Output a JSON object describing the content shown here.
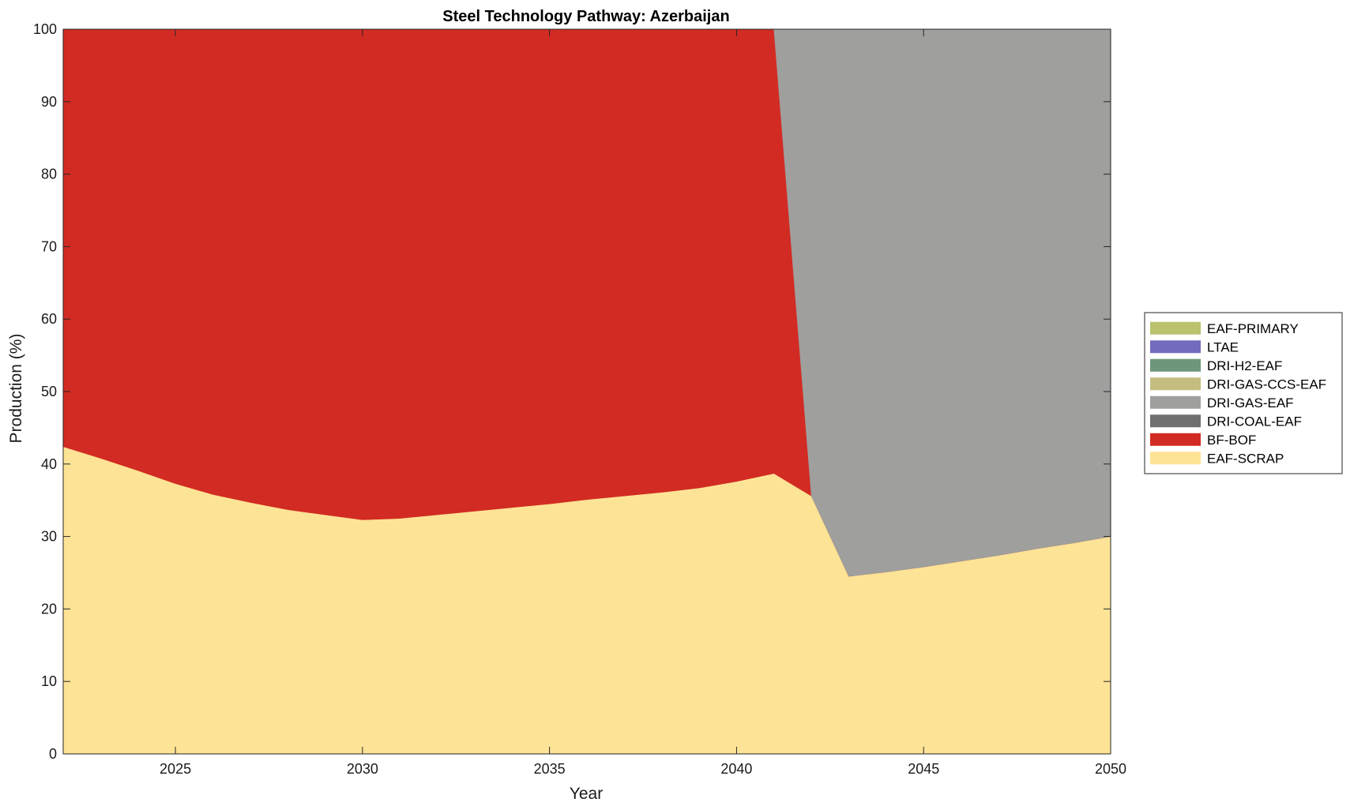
{
  "chart_data": {
    "type": "area",
    "stacked": true,
    "title": "Steel Technology Pathway: Azerbaijan",
    "xlabel": "Year",
    "ylabel": "Production (%)",
    "xlim": [
      2022,
      2050
    ],
    "ylim": [
      0,
      100
    ],
    "xticks": [
      2025,
      2030,
      2035,
      2040,
      2045,
      2050
    ],
    "yticks": [
      0,
      10,
      20,
      30,
      40,
      50,
      60,
      70,
      80,
      90,
      100
    ],
    "grid": false,
    "legend_position": "right",
    "x": [
      2022,
      2023,
      2024,
      2025,
      2026,
      2027,
      2028,
      2029,
      2030,
      2031,
      2032,
      2033,
      2034,
      2035,
      2036,
      2037,
      2038,
      2039,
      2040,
      2041,
      2042,
      2043,
      2044,
      2045,
      2046,
      2047,
      2048,
      2049,
      2050
    ],
    "series": [
      {
        "name": "EAF-SCRAP",
        "color": "#FDE395",
        "values": [
          42.4,
          40.8,
          39.1,
          37.3,
          35.8,
          34.7,
          33.7,
          33.0,
          32.3,
          32.5,
          33.0,
          33.5,
          34.0,
          34.5,
          35.1,
          35.6,
          36.1,
          36.7,
          37.6,
          38.7,
          35.6,
          24.5,
          25.1,
          25.8,
          26.6,
          27.4,
          28.3,
          29.1,
          30.0
        ]
      },
      {
        "name": "BF-BOF",
        "color": "#D22B23",
        "values": [
          57.6,
          59.2,
          60.9,
          62.7,
          64.2,
          65.3,
          66.3,
          67.0,
          67.7,
          67.5,
          67.0,
          66.5,
          66.0,
          65.5,
          64.9,
          64.4,
          63.9,
          63.3,
          62.4,
          61.3,
          0,
          0,
          0,
          0,
          0,
          0,
          0,
          0,
          0
        ]
      },
      {
        "name": "DRI-COAL-EAF",
        "color": "#707070",
        "values": [
          0,
          0,
          0,
          0,
          0,
          0,
          0,
          0,
          0,
          0,
          0,
          0,
          0,
          0,
          0,
          0,
          0,
          0,
          0,
          0,
          0,
          0,
          0,
          0,
          0,
          0,
          0,
          0,
          0
        ]
      },
      {
        "name": "DRI-GAS-EAF",
        "color": "#9F9F9D",
        "values": [
          0,
          0,
          0,
          0,
          0,
          0,
          0,
          0,
          0,
          0,
          0,
          0,
          0,
          0,
          0,
          0,
          0,
          0,
          0,
          0,
          64.4,
          75.5,
          74.9,
          74.2,
          73.4,
          72.6,
          71.7,
          70.9,
          70.0
        ]
      },
      {
        "name": "DRI-GAS-CCS-EAF",
        "color": "#C5BC80",
        "values": [
          0,
          0,
          0,
          0,
          0,
          0,
          0,
          0,
          0,
          0,
          0,
          0,
          0,
          0,
          0,
          0,
          0,
          0,
          0,
          0,
          0,
          0,
          0,
          0,
          0,
          0,
          0,
          0,
          0
        ]
      },
      {
        "name": "DRI-H2-EAF",
        "color": "#6E967A",
        "values": [
          0,
          0,
          0,
          0,
          0,
          0,
          0,
          0,
          0,
          0,
          0,
          0,
          0,
          0,
          0,
          0,
          0,
          0,
          0,
          0,
          0,
          0,
          0,
          0,
          0,
          0,
          0,
          0,
          0
        ]
      },
      {
        "name": "LTAE",
        "color": "#736BBD",
        "values": [
          0,
          0,
          0,
          0,
          0,
          0,
          0,
          0,
          0,
          0,
          0,
          0,
          0,
          0,
          0,
          0,
          0,
          0,
          0,
          0,
          0,
          0,
          0,
          0,
          0,
          0,
          0,
          0,
          0
        ]
      },
      {
        "name": "EAF-PRIMARY",
        "color": "#BAC26D",
        "values": [
          0,
          0,
          0,
          0,
          0,
          0,
          0,
          0,
          0,
          0,
          0,
          0,
          0,
          0,
          0,
          0,
          0,
          0,
          0,
          0,
          0,
          0,
          0,
          0,
          0,
          0,
          0,
          0,
          0
        ]
      }
    ],
    "legend_order": [
      "EAF-PRIMARY",
      "LTAE",
      "DRI-H2-EAF",
      "DRI-GAS-CCS-EAF",
      "DRI-GAS-EAF",
      "DRI-COAL-EAF",
      "BF-BOF",
      "EAF-SCRAP"
    ]
  }
}
